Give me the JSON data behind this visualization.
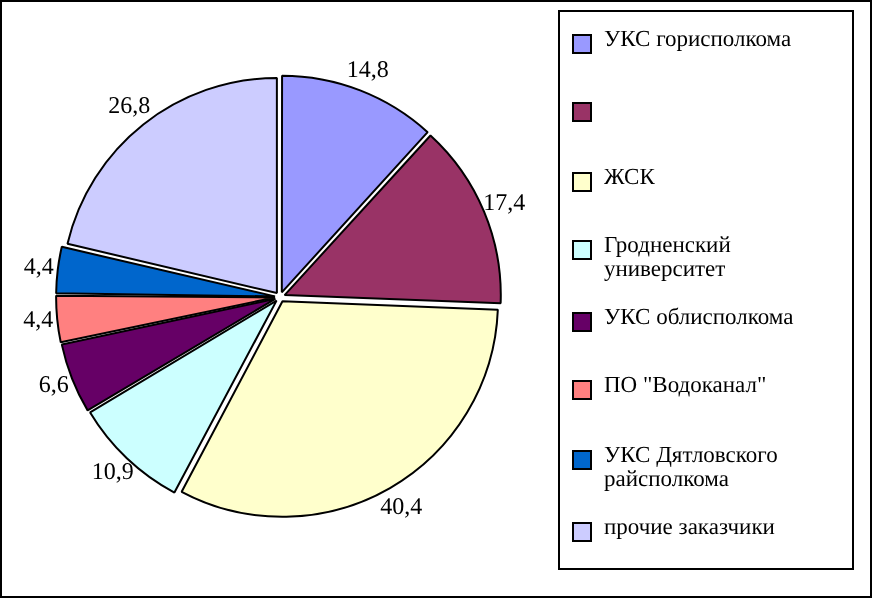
{
  "chart_data": {
    "type": "pie",
    "categories": [
      "УКС горисполкома",
      null,
      "ЖСК",
      "Гродненский университет",
      "УКС облисполкома",
      "ПО \"Водоканал\"",
      "УКС Дятловского райсполкома",
      "прочие заказчики"
    ],
    "values": [
      14.8,
      17.4,
      40.4,
      10.9,
      6.6,
      4.4,
      4.4,
      26.8
    ],
    "colors": [
      "#9999ff",
      "#993366",
      "#ffffcc",
      "#ccffff",
      "#660066",
      "#ff8080",
      "#0066cc",
      "#ccccff"
    ],
    "value_labels": [
      "14,8",
      "17,4",
      "40,4",
      "10,9",
      "6,6",
      "4,4",
      "4,4",
      "26,8"
    ],
    "legend": "right"
  }
}
